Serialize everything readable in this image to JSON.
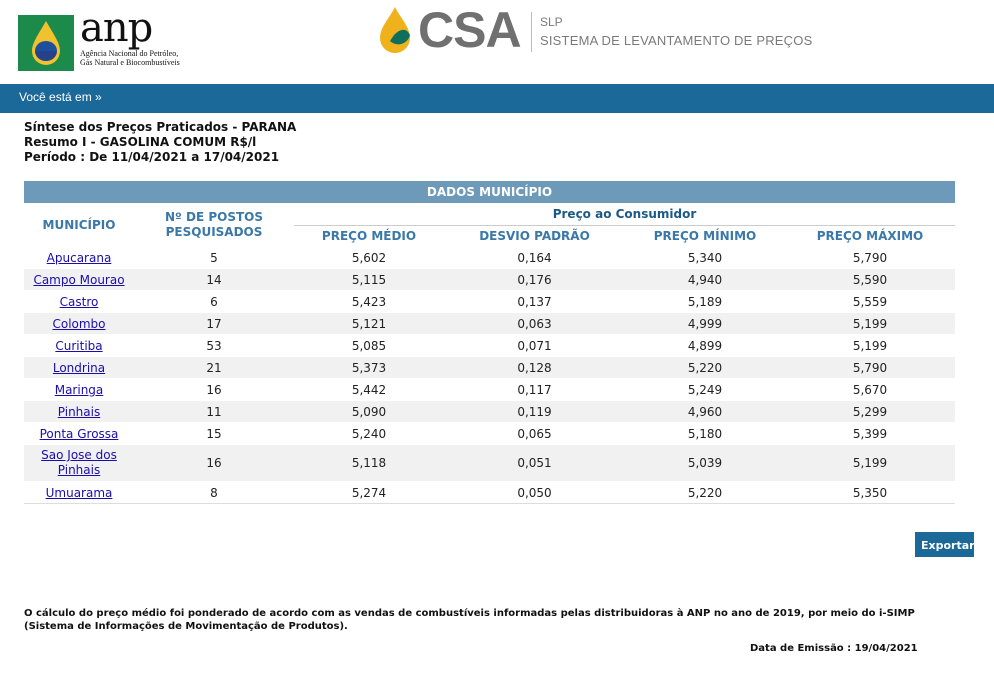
{
  "header": {
    "anp_name": "anp",
    "anp_sub": "Agência Nacional do Petróleo, Gás Natural e Biocombustíveis",
    "csa_name": "CSA",
    "slp_label": "SLP",
    "slp_full": "SISTEMA DE LEVANTAMENTO DE PREÇOS",
    "colors": {
      "bar": "#1b6999",
      "table_header": "#6d9ab8",
      "accent_text": "#3a78a8"
    }
  },
  "breadcrumb": "Você está em »",
  "titles": {
    "line1": "Síntese dos Preços Praticados - PARANA",
    "line2": "Resumo I - GASOLINA COMUM R$/l",
    "line3": "Período : De 11/04/2021 a 17/04/2021"
  },
  "table": {
    "caption": "DADOS MUNICÍPIO",
    "group_header": "Preço ao Consumidor",
    "columns": {
      "municipio": "MUNICÍPIO",
      "postos": "Nº DE POSTOS PESQUISADOS",
      "medio": "PREÇO MÉDIO",
      "desvio": "DESVIO PADRÃO",
      "minimo": "PREÇO MÍNIMO",
      "maximo": "PREÇO MÁXIMO"
    },
    "rows": [
      {
        "municipio": "Apucarana",
        "postos": "5",
        "medio": "5,602",
        "desvio": "0,164",
        "minimo": "5,340",
        "maximo": "5,790"
      },
      {
        "municipio": "Campo Mourao",
        "postos": "14",
        "medio": "5,115",
        "desvio": "0,176",
        "minimo": "4,940",
        "maximo": "5,590"
      },
      {
        "municipio": "Castro",
        "postos": "6",
        "medio": "5,423",
        "desvio": "0,137",
        "minimo": "5,189",
        "maximo": "5,559"
      },
      {
        "municipio": "Colombo",
        "postos": "17",
        "medio": "5,121",
        "desvio": "0,063",
        "minimo": "4,999",
        "maximo": "5,199"
      },
      {
        "municipio": "Curitiba",
        "postos": "53",
        "medio": "5,085",
        "desvio": "0,071",
        "minimo": "4,899",
        "maximo": "5,199"
      },
      {
        "municipio": "Londrina",
        "postos": "21",
        "medio": "5,373",
        "desvio": "0,128",
        "minimo": "5,220",
        "maximo": "5,790"
      },
      {
        "municipio": "Maringa",
        "postos": "16",
        "medio": "5,442",
        "desvio": "0,117",
        "minimo": "5,249",
        "maximo": "5,670"
      },
      {
        "municipio": "Pinhais",
        "postos": "11",
        "medio": "5,090",
        "desvio": "0,119",
        "minimo": "4,960",
        "maximo": "5,299"
      },
      {
        "municipio": "Ponta Grossa",
        "postos": "15",
        "medio": "5,240",
        "desvio": "0,065",
        "minimo": "5,180",
        "maximo": "5,399"
      },
      {
        "municipio": "Sao Jose dos Pinhais",
        "postos": "16",
        "medio": "5,118",
        "desvio": "0,051",
        "minimo": "5,039",
        "maximo": "5,199"
      },
      {
        "municipio": "Umuarama",
        "postos": "8",
        "medio": "5,274",
        "desvio": "0,050",
        "minimo": "5,220",
        "maximo": "5,350"
      }
    ]
  },
  "export_label": "Exportar",
  "note": "O cálculo do preço médio foi ponderado de acordo com as vendas de combustíveis informadas pelas distribuidoras à ANP no ano de 2019, por meio do i-SIMP (Sistema de Informações de Movimentação de Produtos).",
  "emissao": "Data de Emissão : 19/04/2021"
}
